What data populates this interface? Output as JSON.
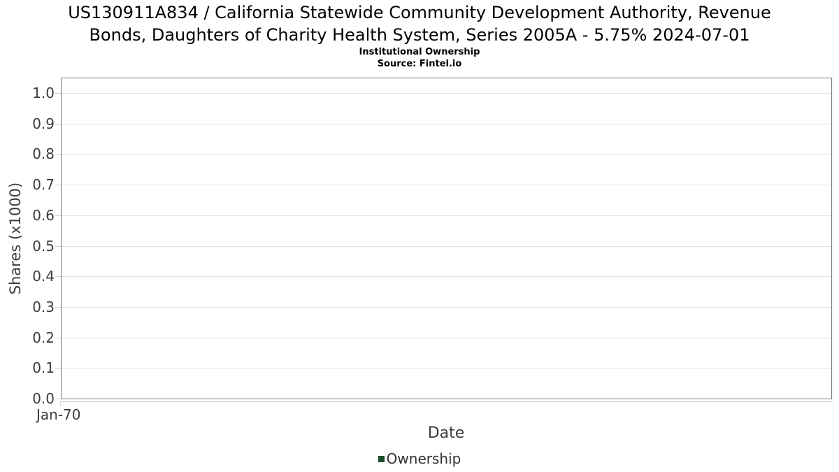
{
  "title": {
    "lines": [
      "US130911A834 / California Statewide Community Development Authority, Revenue",
      "Bonds, Daughters of Charity Health System, Series 2005A - 5.75% 2024-07-01"
    ]
  },
  "subtitle": "Institutional Ownership",
  "source": "Source: Fintel.io",
  "chart_data": {
    "type": "line",
    "title": "US130911A834 / California Statewide Community Development Authority, Revenue Bonds, Daughters of Charity Health System, Series 2005A - 5.75% 2024-07-01",
    "subtitle": "Institutional Ownership",
    "source": "Source: Fintel.io",
    "xlabel": "Date",
    "ylabel": "Shares (x1000)",
    "x_ticks": [
      "Jan-70"
    ],
    "y_ticks": [
      "0.0",
      "0.1",
      "0.2",
      "0.3",
      "0.4",
      "0.5",
      "0.6",
      "0.7",
      "0.8",
      "0.9",
      "1.0"
    ],
    "ylim": [
      0,
      1.05
    ],
    "grid": true,
    "legend_position": "bottom",
    "series": [
      {
        "name": "Ownership",
        "color": "#1e4d2b",
        "x": [],
        "y": []
      }
    ]
  },
  "colors": {
    "background": "#ffffff",
    "title_text": "#000000",
    "axis_text": "#3c3c3c",
    "legend_text": "#333333",
    "plot_border": "#7b7b7b",
    "gridline": "#e3e3e3",
    "tick": "#cfcfcf",
    "legend_marker": "#1e4d2b"
  }
}
